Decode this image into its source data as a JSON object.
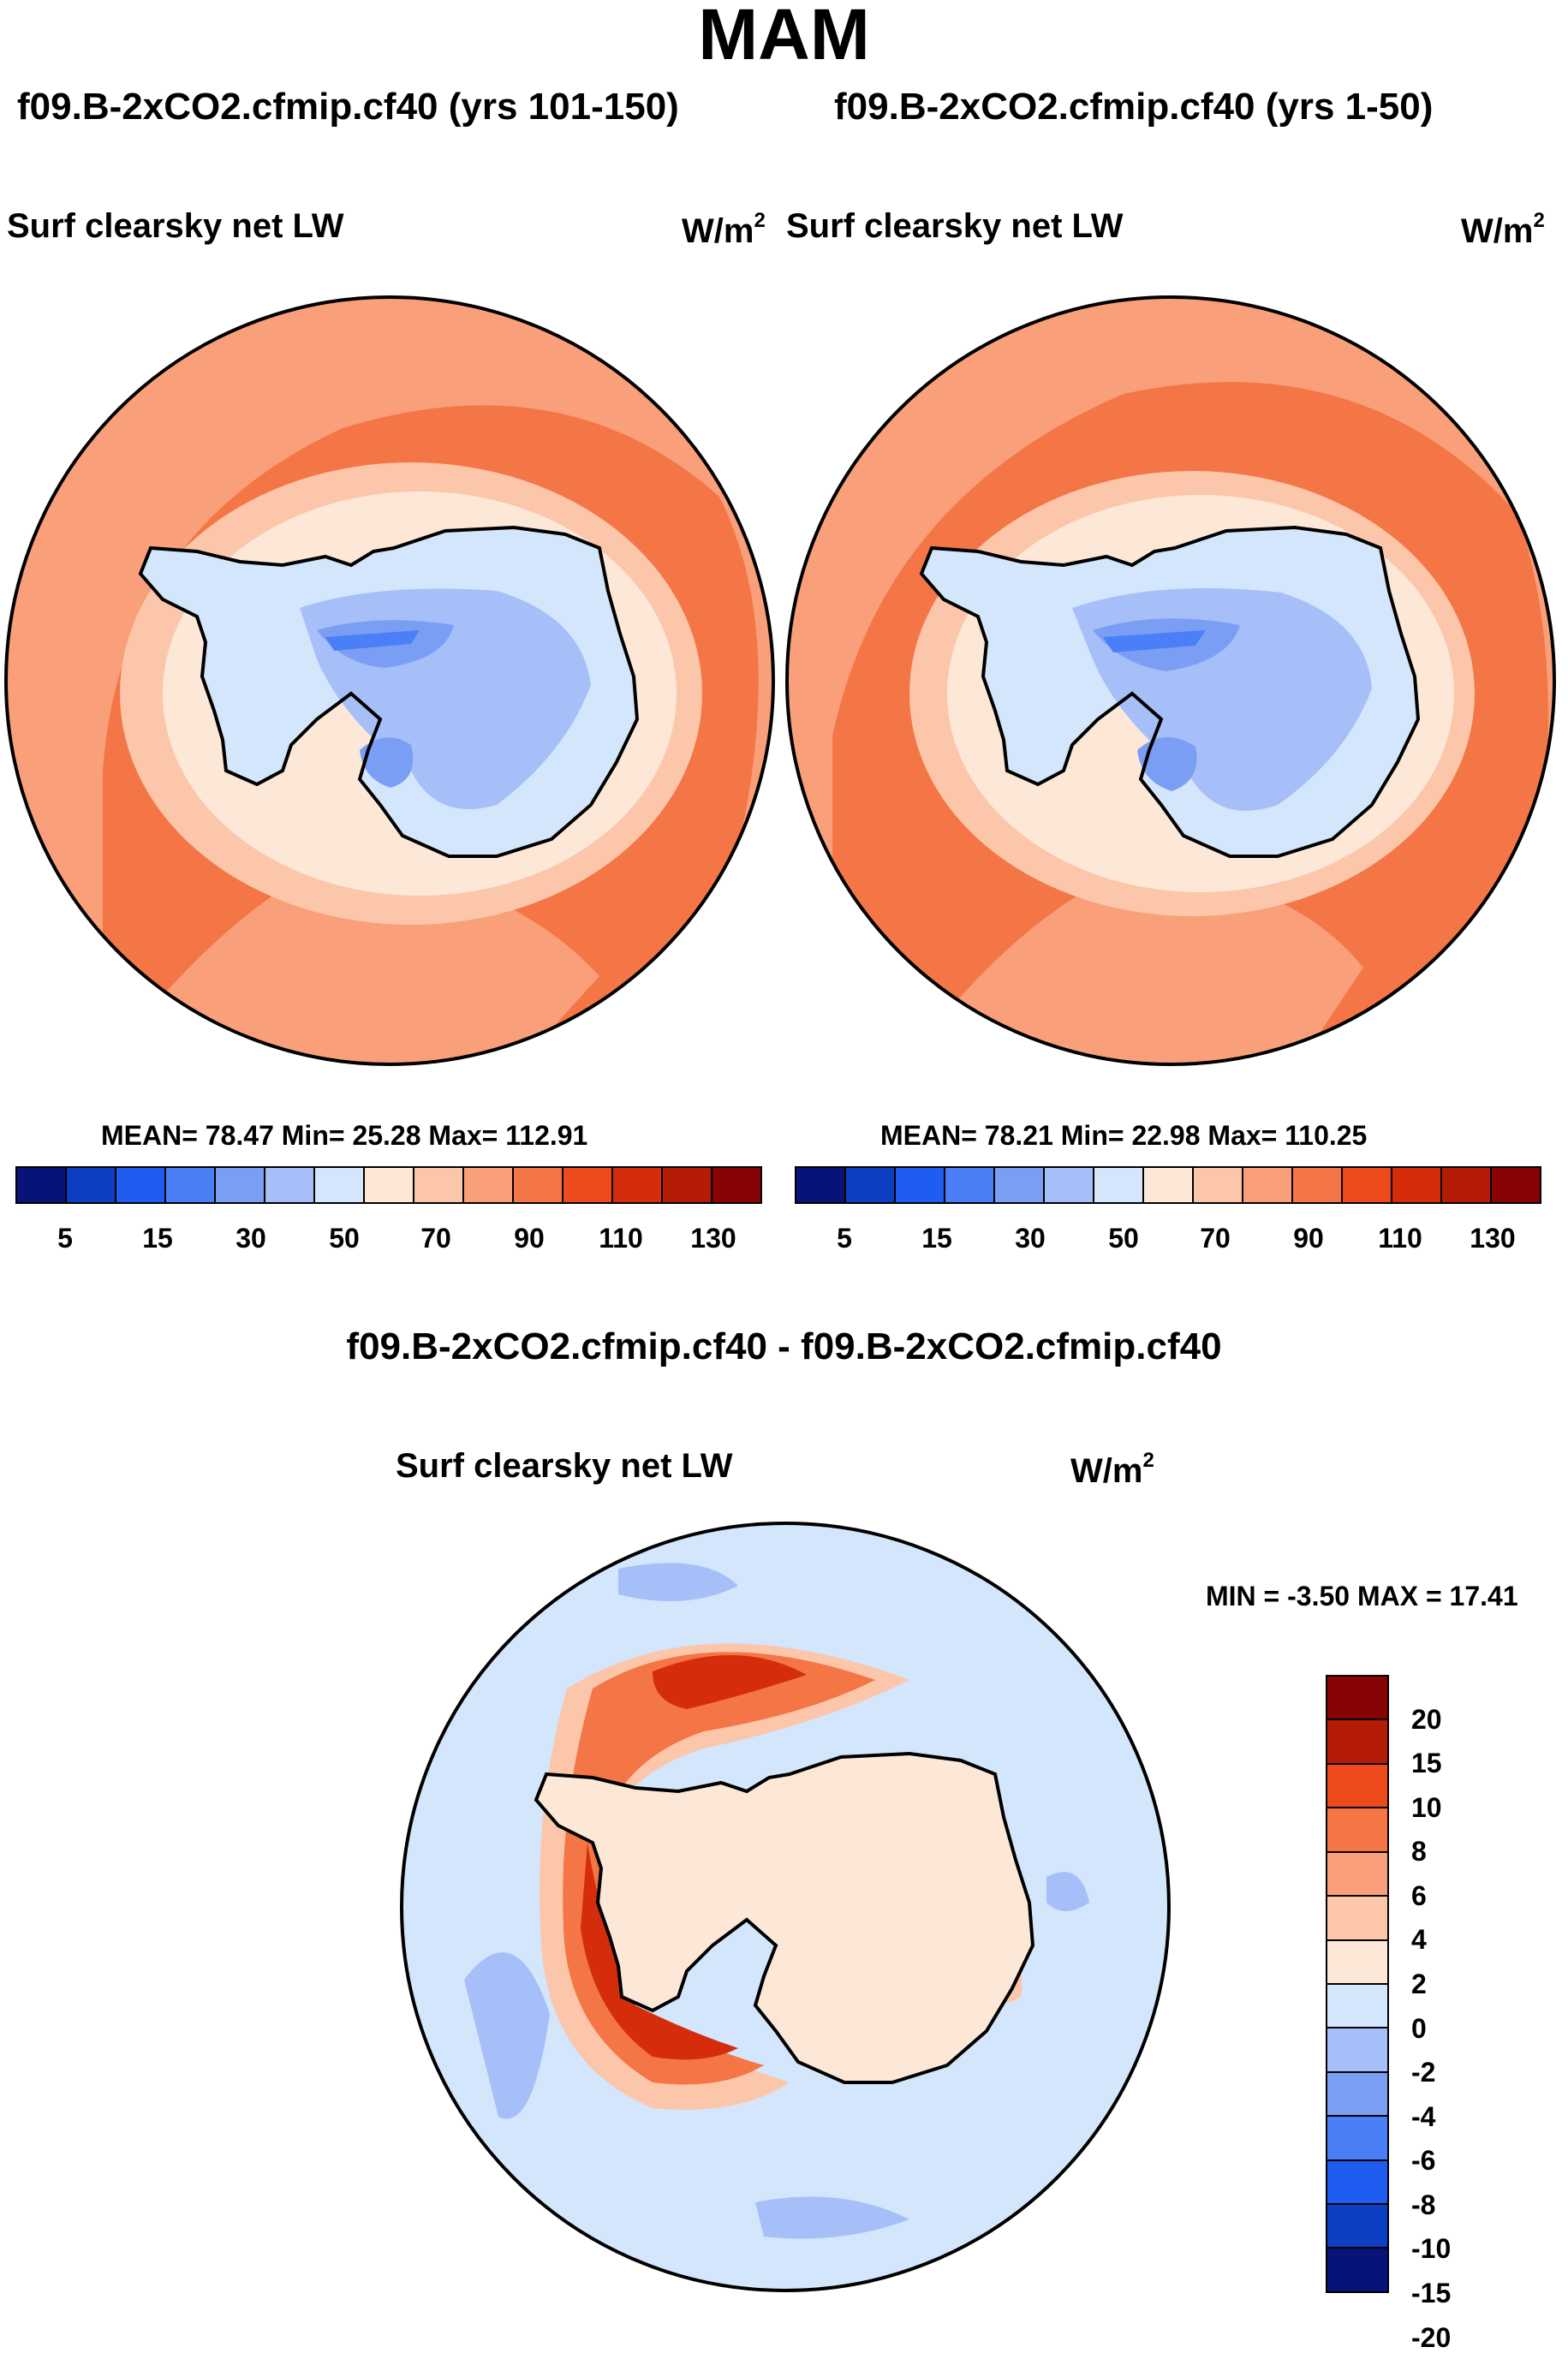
{
  "title": "MAM",
  "panels": [
    {
      "run_title": "f09.B-2xCO2.cfmip.cf40 (yrs 101-150)",
      "field_label": "Surf clearsky net LW",
      "units_base": "W/m",
      "units_exp": "2",
      "stats": "MEAN=  78.47  Min=  25.28  Max= 112.91"
    },
    {
      "run_title": "f09.B-2xCO2.cfmip.cf40 (yrs 1-50)",
      "field_label": "Surf clearsky net LW",
      "units_base": "W/m",
      "units_exp": "2",
      "stats": "MEAN=  78.21  Min=  22.98  Max= 110.25"
    }
  ],
  "difference": {
    "title": "f09.B-2xCO2.cfmip.cf40 - f09.B-2xCO2.cfmip.cf40",
    "field_label": "Surf clearsky net LW",
    "units_base": "W/m",
    "units_exp": "2",
    "stats": "MIN =  -3.50 MAX =  17.41"
  },
  "colorbar_abs": {
    "colors": [
      "#08137a",
      "#0d3fc2",
      "#1f5cf0",
      "#4b7ff7",
      "#7b9ef5",
      "#a6bff8",
      "#d4e6fb",
      "#fde8d8",
      "#fbc6aa",
      "#f9a07a",
      "#f47545",
      "#ee4a1c",
      "#d52d0c",
      "#b51c05",
      "#880404"
    ],
    "tick_labels": [
      "5",
      "15",
      "30",
      "50",
      "70",
      "90",
      "110",
      "130"
    ]
  },
  "colorbar_diff": {
    "colors_top_to_bottom": [
      "#880404",
      "#b51c05",
      "#ee4a1c",
      "#f47545",
      "#f9a07a",
      "#fbc6aa",
      "#fde8d8",
      "#d4e6fb",
      "#a6bff8",
      "#7b9ef5",
      "#4b7ff7",
      "#1f5cf0",
      "#0d3fc2",
      "#08137a"
    ],
    "tick_labels": [
      "20",
      "15",
      "10",
      "8",
      "6",
      "4",
      "2",
      "0",
      "-2",
      "-4",
      "-6",
      "-8",
      "-10",
      "-15",
      "-20"
    ]
  },
  "map_colors": {
    "ocean_warm": "#f47545",
    "ocean_mid": "#f9a07a",
    "coast_pale": "#fde8d8",
    "ice_light": "#d4e6fb",
    "ice_mid": "#a6bff8",
    "ice_dark": "#7b9ef5",
    "ice_darkest": "#4b7ff7",
    "diff_bg": "#d4e6fb",
    "diff_land": "#fde8d8",
    "diff_neg": "#a6bff8",
    "diff_pos1": "#fbc6aa",
    "diff_pos2": "#f47545",
    "diff_pos3": "#d52d0c"
  }
}
